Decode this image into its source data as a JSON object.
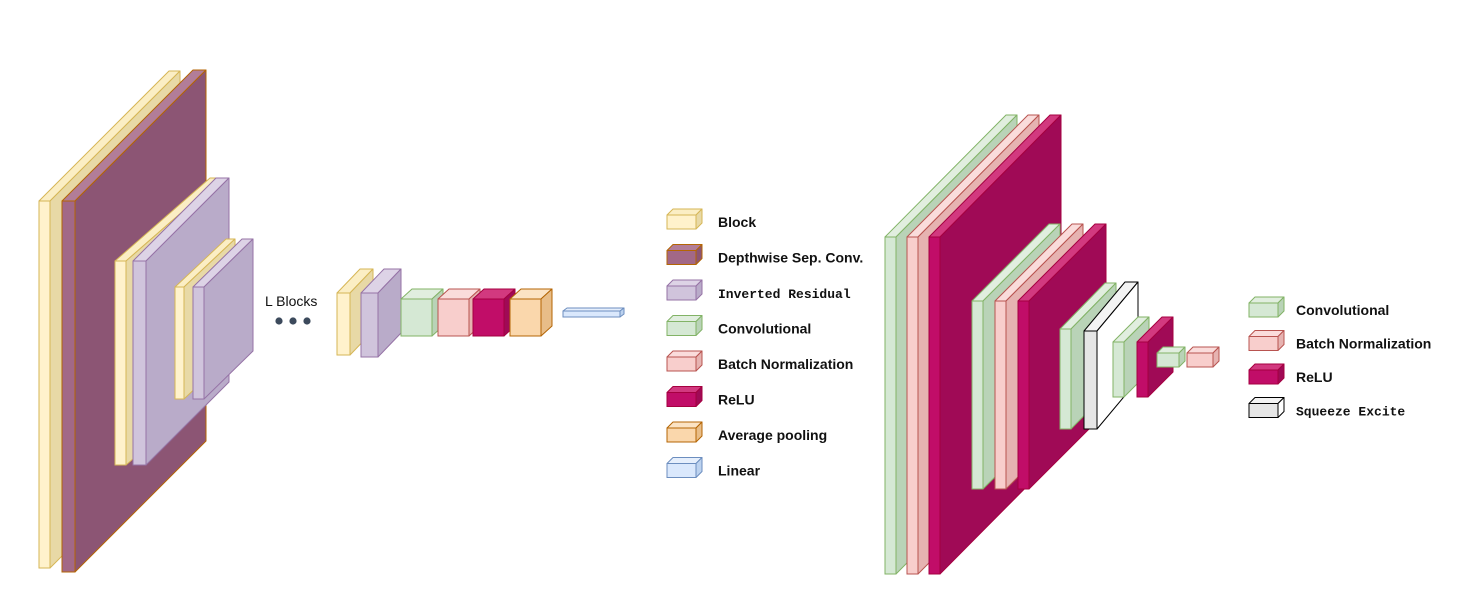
{
  "colors": {
    "block": {
      "front": "#fff2cc",
      "side": "#e8d9a6",
      "top": "#fbeec4",
      "stroke": "#d6b656"
    },
    "depthwise": {
      "front": "#a26887",
      "side": "#8c5574",
      "top": "#b27d98",
      "stroke": "#b46504"
    },
    "inverted_residual": {
      "front": "#d0c4dc",
      "side": "#b9abc9",
      "top": "#ddd3e6",
      "stroke": "#9673a6"
    },
    "convolutional": {
      "front": "#d5e8d4",
      "side": "#b9d3b7",
      "top": "#e1eedf",
      "stroke": "#82b366"
    },
    "batch_norm": {
      "front": "#f8cecc",
      "side": "#e6b3b1",
      "top": "#fadcdb",
      "stroke": "#b85450"
    },
    "relu": {
      "front": "#c10d68",
      "side": "#a00a56",
      "top": "#d2397f",
      "stroke": "#a50040"
    },
    "avg_pool": {
      "front": "#fad7ac",
      "side": "#e8bd88",
      "top": "#fbe3c4",
      "stroke": "#b46504"
    },
    "linear": {
      "front": "#dae8fc",
      "side": "#bcd2ef",
      "top": "#e6effc",
      "stroke": "#6c8ebf"
    },
    "squeeze_excite": {
      "front": "#e6e6e6",
      "side": "#ffffff",
      "top": "#f3f3f3",
      "stroke": "#000000"
    }
  },
  "main": {
    "l_blocks_label": "L Blocks",
    "ellipsis_color": "#3c4a5c"
  },
  "legend_main": [
    {
      "key": "block",
      "label": "Block",
      "style": "bold"
    },
    {
      "key": "depthwise",
      "label": "Depthwise Sep. Conv.",
      "style": "bold"
    },
    {
      "key": "inverted_residual",
      "label": "Inverted Residual",
      "style": "mono"
    },
    {
      "key": "convolutional",
      "label": "Convolutional",
      "style": "bold"
    },
    {
      "key": "batch_norm",
      "label": "Batch Normalization",
      "style": "bold"
    },
    {
      "key": "relu",
      "label": "ReLU",
      "style": "bold"
    },
    {
      "key": "avg_pool",
      "label": "Average pooling",
      "style": "bold"
    },
    {
      "key": "linear",
      "label": "Linear",
      "style": "bold"
    }
  ],
  "legend_block": [
    {
      "key": "convolutional",
      "label": "Convolutional",
      "style": "bold"
    },
    {
      "key": "batch_norm",
      "label": "Batch Normalization",
      "style": "bold"
    },
    {
      "key": "relu",
      "label": "ReLU",
      "style": "bold"
    },
    {
      "key": "squeeze_excite",
      "label": "Squeeze Excite",
      "style": "mono"
    }
  ]
}
